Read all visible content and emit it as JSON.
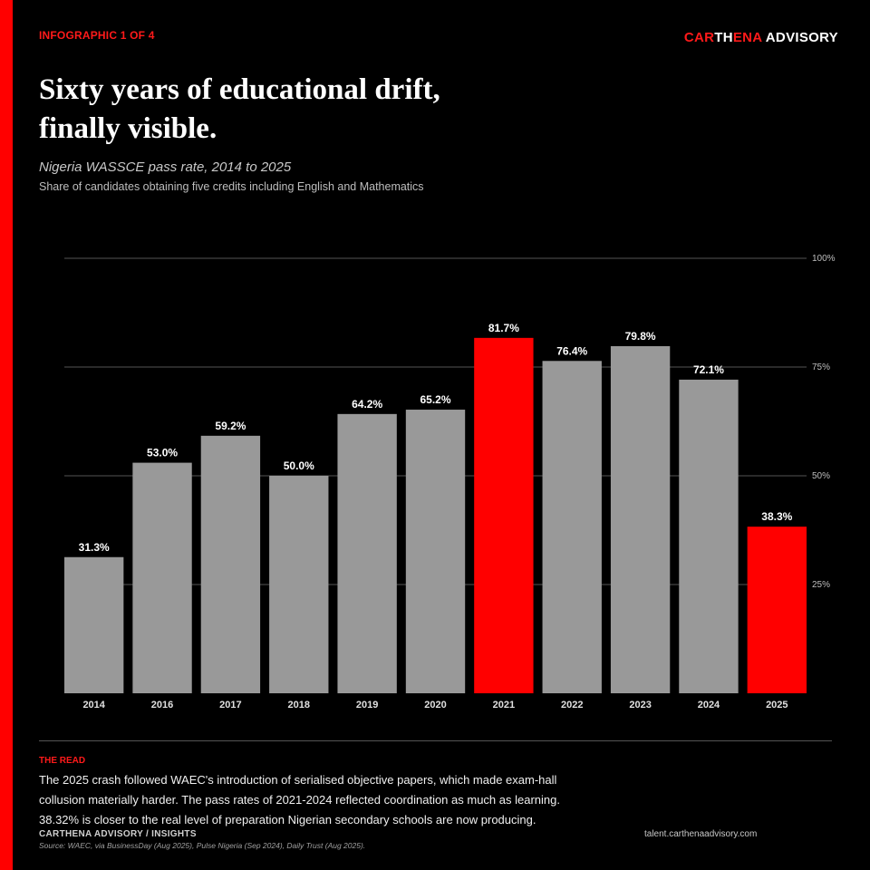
{
  "header": {
    "kicker": "INFOGRAPHIC 1 OF 4",
    "brand": {
      "part1": "CAR",
      "part2": "TH",
      "part3": "ENA",
      "part4": " ADVISORY"
    }
  },
  "title": {
    "line1": "Sixty years of educational drift,",
    "line2": "finally visible."
  },
  "subtitle": "Nigeria WASSCE pass rate, 2014 to 2025",
  "subnote": "Share of candidates obtaining five credits including English and Mathematics",
  "chart_data": {
    "type": "bar",
    "categories": [
      "2014",
      "2016",
      "2017",
      "2018",
      "2019",
      "2020",
      "2021",
      "2022",
      "2023",
      "2024",
      "2025"
    ],
    "values": [
      31.3,
      53.0,
      59.2,
      50.0,
      64.2,
      65.2,
      81.7,
      76.4,
      79.8,
      72.1,
      38.3
    ],
    "value_labels": [
      "31.3%",
      "53.0%",
      "59.2%",
      "50.0%",
      "64.2%",
      "65.2%",
      "81.7%",
      "76.4%",
      "79.8%",
      "72.1%",
      "38.3%"
    ],
    "highlighted": [
      "2021",
      "2025"
    ],
    "ylim": [
      0,
      100
    ],
    "yticks": [
      25,
      50,
      75,
      100
    ],
    "ytick_labels": [
      "25%",
      "50%",
      "75%",
      "100%"
    ],
    "grid": true,
    "colors": {
      "bar": "#999999",
      "highlight": "#ff0000",
      "grid": "#555555",
      "axis_text": "#bdbdbd"
    },
    "title": "",
    "xlabel": "",
    "ylabel": ""
  },
  "read": {
    "label": "THE READ",
    "lines": [
      "The 2025 crash followed WAEC's introduction of serialised objective papers, which made exam-hall",
      "collusion materially harder. The pass rates of 2021-2024 reflected coordination as much as learning.",
      "38.32% is closer to the real level of preparation Nigerian secondary schools are now producing."
    ]
  },
  "footer": {
    "org": "CARTHENA ADVISORY  /  INSIGHTS",
    "source": "Source: WAEC, via BusinessDay (Aug 2025), Pulse Nigeria (Sep 2024), Daily Trust (Aug 2025).",
    "url": "talent.carthenaadvisory.com"
  }
}
